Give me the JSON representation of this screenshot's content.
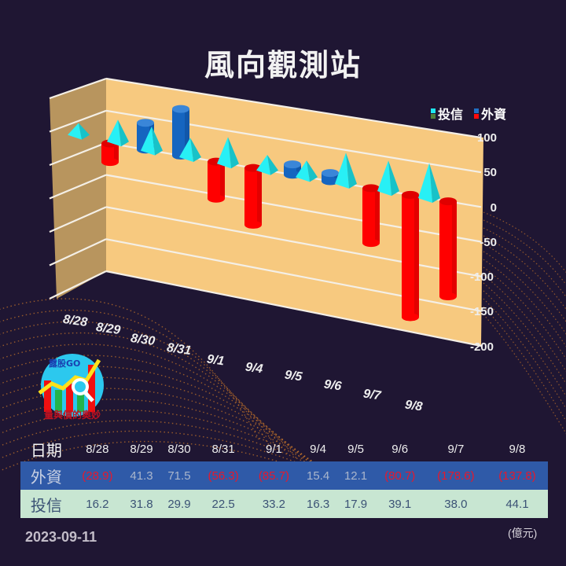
{
  "title": "風向觀測站",
  "legend": [
    {
      "label": "投信",
      "colors": [
        "#1ee6f0",
        "#4f7f3c"
      ]
    },
    {
      "label": "外資",
      "colors": [
        "#1f6fc4",
        "#ff0a0a"
      ]
    }
  ],
  "colors": {
    "background": "#1f1633",
    "back_wall": "#f7c97f",
    "side_wall": "#b8955e",
    "foreign_positive": "#1565c0",
    "foreign_negative": "#ff0000",
    "trust": "#1ee6f0",
    "table_foreign_row": "#2f5aa8",
    "table_trust_row": "#c8e6d2",
    "negative_text": "#e8182b"
  },
  "y_ticks": [
    "100",
    "50",
    "0",
    "-50",
    "-100",
    "-150",
    "-200"
  ],
  "x_ticks": [
    "8/28",
    "8/29",
    "8/30",
    "8/31",
    "9/1",
    "9/4",
    "9/5",
    "9/6",
    "9/7",
    "9/8"
  ],
  "logo": {
    "brand": "露股GO",
    "tagline": "量與價的奧妙"
  },
  "table": {
    "header_label": "日期",
    "dates": [
      "8/28",
      "8/29",
      "8/30",
      "8/31",
      "9/1",
      "9/4",
      "9/5",
      "9/6",
      "9/7",
      "9/8"
    ],
    "foreign_label": "外資",
    "foreign": [
      "(28.9)",
      "41.3",
      "71.5",
      "(56.3)",
      "(85.7)",
      "15.4",
      "12.1",
      "(80.7)",
      "(178.6)",
      "(137.8)"
    ],
    "trust_label": "投信",
    "trust": [
      "16.2",
      "31.8",
      "29.9",
      "22.5",
      "33.2",
      "16.3",
      "17.9",
      "39.1",
      "38.0",
      "44.1"
    ]
  },
  "footer": {
    "date": "2023-09-11",
    "unit": "(億元)"
  },
  "chart_data": {
    "type": "bar",
    "title": "風向觀測站",
    "categories": [
      "8/28",
      "8/29",
      "8/30",
      "8/31",
      "9/1",
      "9/4",
      "9/5",
      "9/6",
      "9/7",
      "9/8"
    ],
    "series": [
      {
        "name": "外資",
        "values": [
          -28.9,
          41.3,
          71.5,
          -56.3,
          -85.7,
          15.4,
          12.1,
          -80.7,
          -178.6,
          -137.8
        ],
        "shape": "cylinder",
        "color_positive": "#1565c0",
        "color_negative": "#ff0000"
      },
      {
        "name": "投信",
        "values": [
          16.2,
          31.8,
          29.9,
          22.5,
          33.2,
          16.3,
          17.9,
          39.1,
          38.0,
          44.1
        ],
        "shape": "pyramid",
        "color": "#1ee6f0"
      }
    ],
    "xlabel": "",
    "ylabel": "",
    "unit": "億元",
    "ylim": [
      -200,
      100
    ],
    "y_ticks": [
      100,
      50,
      0,
      -50,
      -100,
      -150,
      -200
    ],
    "grid": true,
    "legend_position": "top-right",
    "style": "3d"
  }
}
